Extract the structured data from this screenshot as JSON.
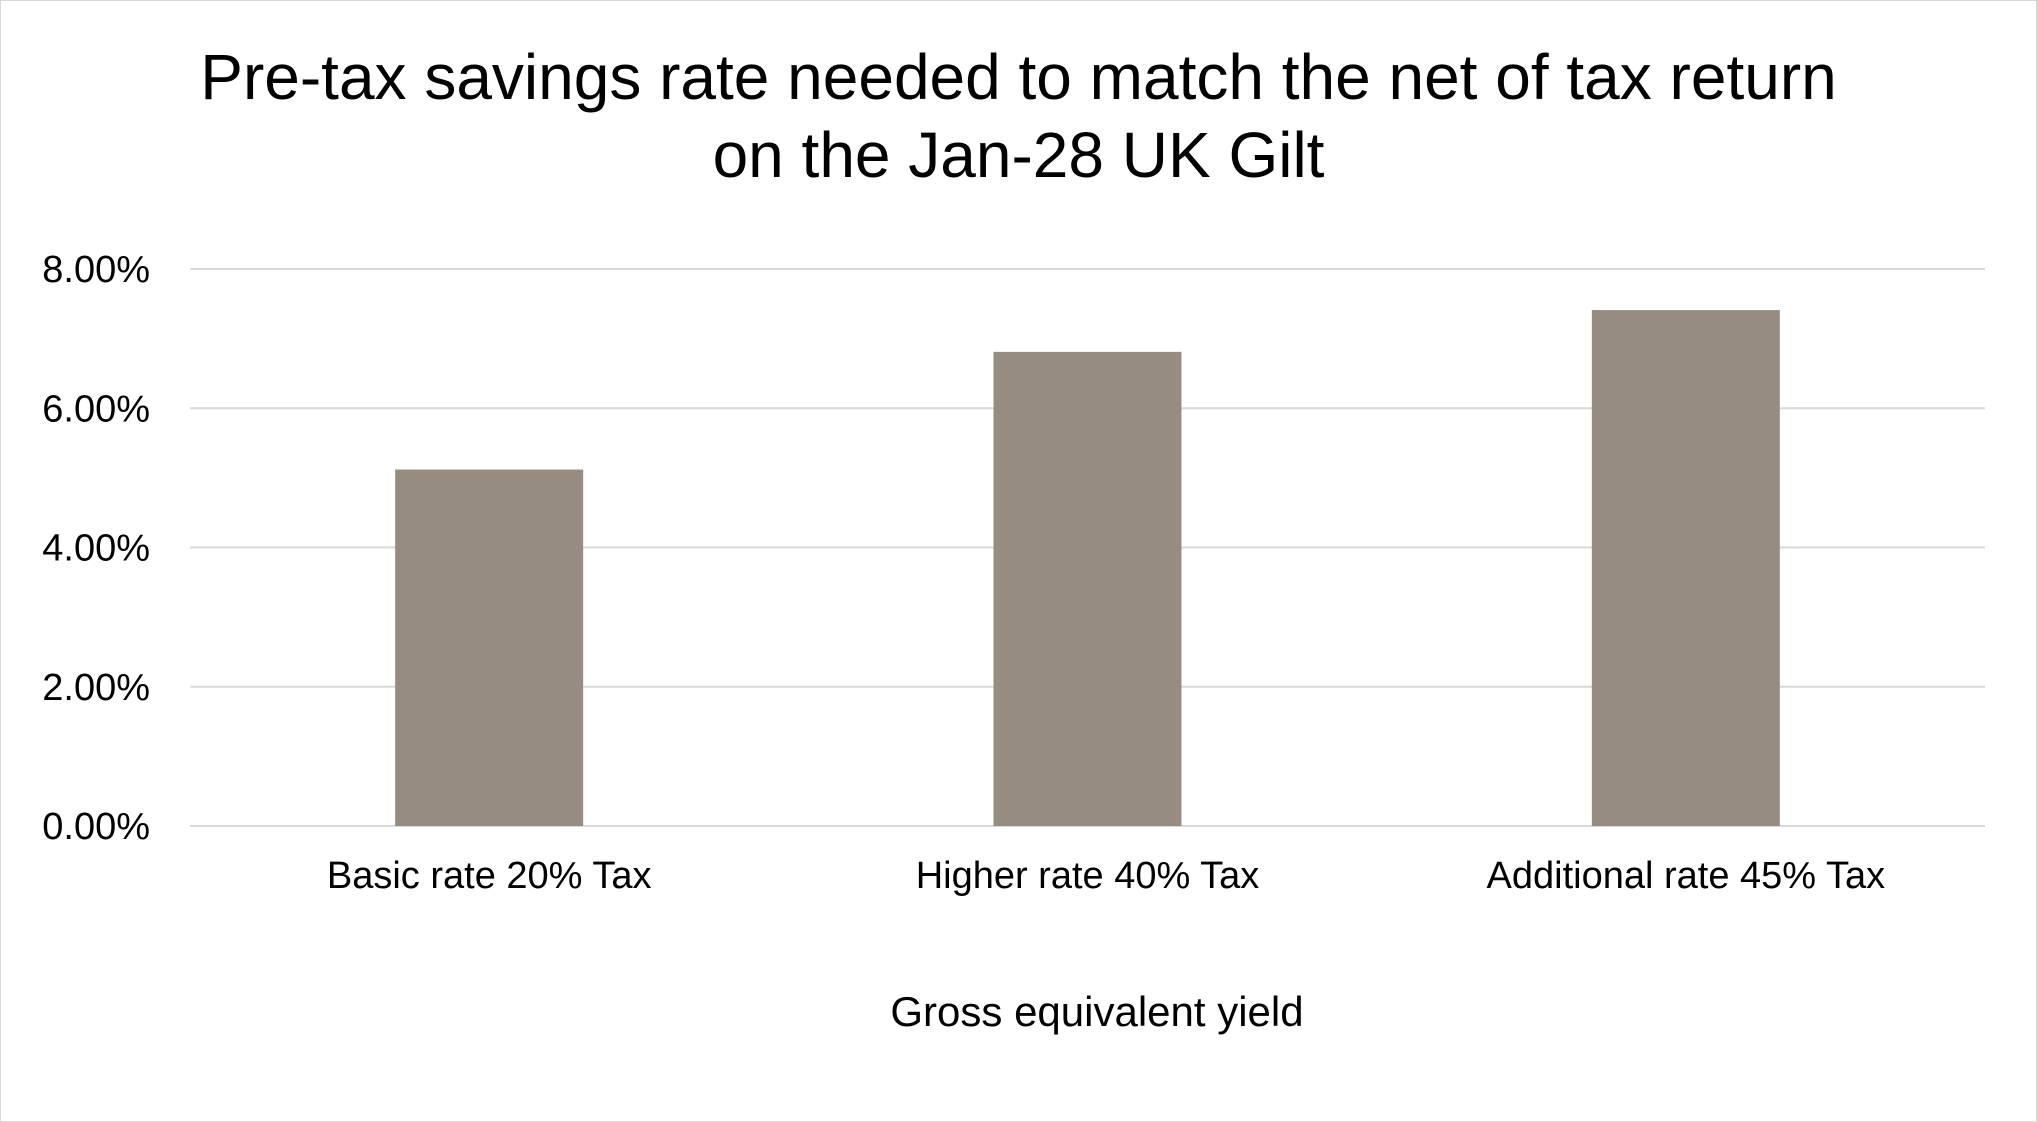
{
  "chart_data": {
    "type": "bar",
    "title_lines": [
      "Pre-tax savings rate needed to match the net of tax return",
      "on the Jan-28 UK Gilt"
    ],
    "xlabel": "Gross equivalent yield",
    "ylabel": "",
    "categories": [
      "Basic rate 20% Tax",
      "Higher rate 40% Tax",
      "Additional rate 45% Tax"
    ],
    "values": [
      5.12,
      6.81,
      7.41
    ],
    "ylim": [
      0,
      8
    ],
    "yticks": [
      0,
      2,
      4,
      6,
      8
    ],
    "ytick_labels": [
      "0.00%",
      "2.00%",
      "4.00%",
      "6.00%",
      "8.00%"
    ],
    "grid": true,
    "legend": "none",
    "bar_color": "#968c82",
    "grid_color": "#d9d9d9"
  }
}
